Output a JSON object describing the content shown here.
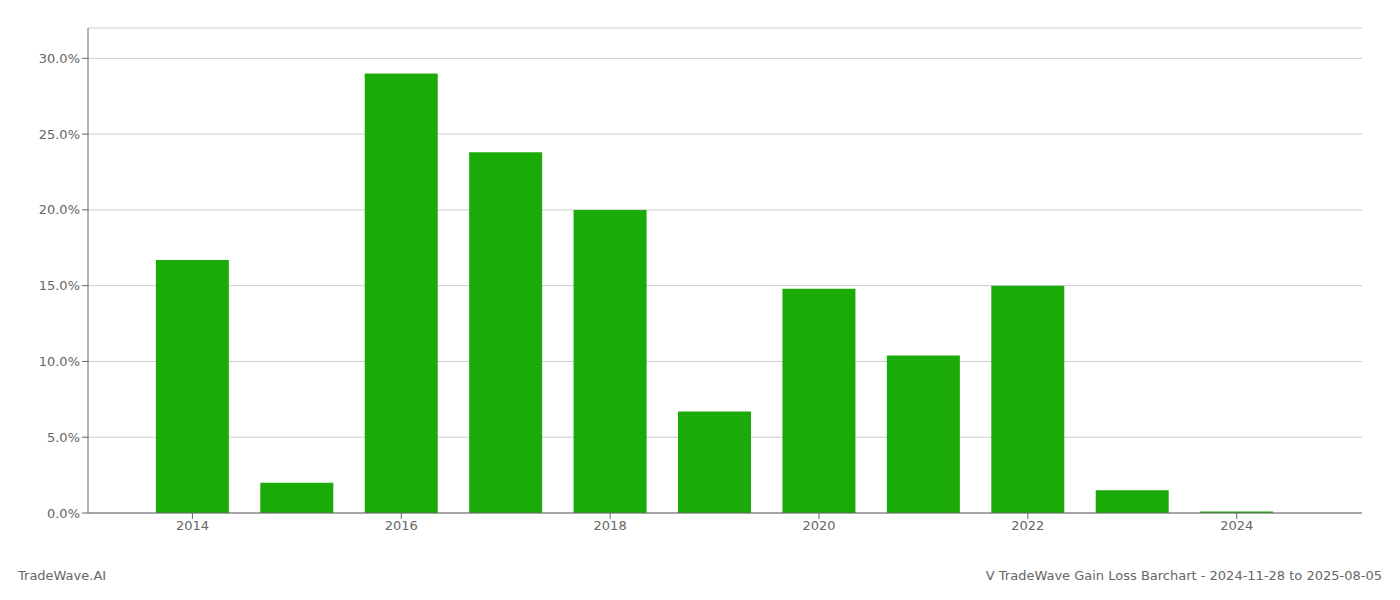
{
  "chart_data": {
    "type": "bar",
    "x": [
      2014,
      2015,
      2016,
      2017,
      2018,
      2019,
      2020,
      2021,
      2022,
      2023,
      2024
    ],
    "values": [
      0.167,
      0.02,
      0.29,
      0.238,
      0.2,
      0.067,
      0.148,
      0.104,
      0.15,
      0.015,
      0.001
    ],
    "color": "#1aab08",
    "xlim": [
      2013.0,
      2025.2
    ],
    "ylim": [
      0.0,
      0.32
    ],
    "xticks": [
      2014,
      2016,
      2018,
      2020,
      2022,
      2024
    ],
    "yticks": [
      {
        "value": 0.0,
        "label": "0.0%"
      },
      {
        "value": 0.05,
        "label": "5.0%"
      },
      {
        "value": 0.1,
        "label": "10.0%"
      },
      {
        "value": 0.15,
        "label": "15.0%"
      },
      {
        "value": 0.2,
        "label": "20.0%"
      },
      {
        "value": 0.25,
        "label": "25.0%"
      },
      {
        "value": 0.3,
        "label": "30.0%"
      }
    ],
    "grid": true,
    "annotations": [
      "TradeWave.AI",
      "V TradeWave Gain Loss Barchart - 2024-11-28 to 2025-08-05"
    ]
  }
}
